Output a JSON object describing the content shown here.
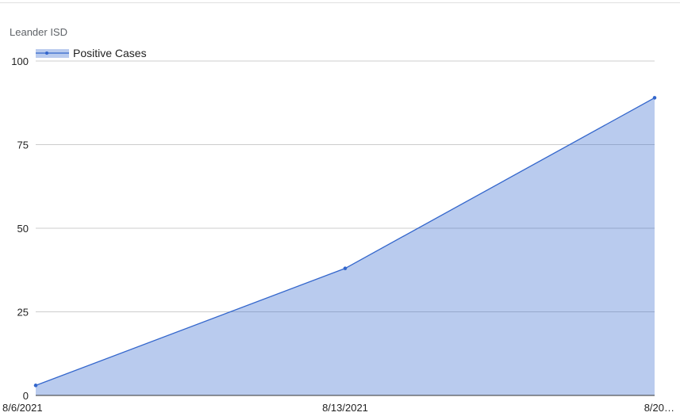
{
  "chart_data": {
    "type": "area",
    "title": "Leander ISD",
    "categories": [
      "8/6/2021",
      "8/13/2021",
      "8/20…"
    ],
    "series": [
      {
        "name": "Positive Cases",
        "values": [
          3,
          38,
          89
        ],
        "color": "#3366cc"
      }
    ],
    "yticks": [
      "0",
      "25",
      "50",
      "75",
      "100"
    ],
    "ylim": [
      0,
      100
    ],
    "grid": true,
    "legend": "top-left"
  }
}
